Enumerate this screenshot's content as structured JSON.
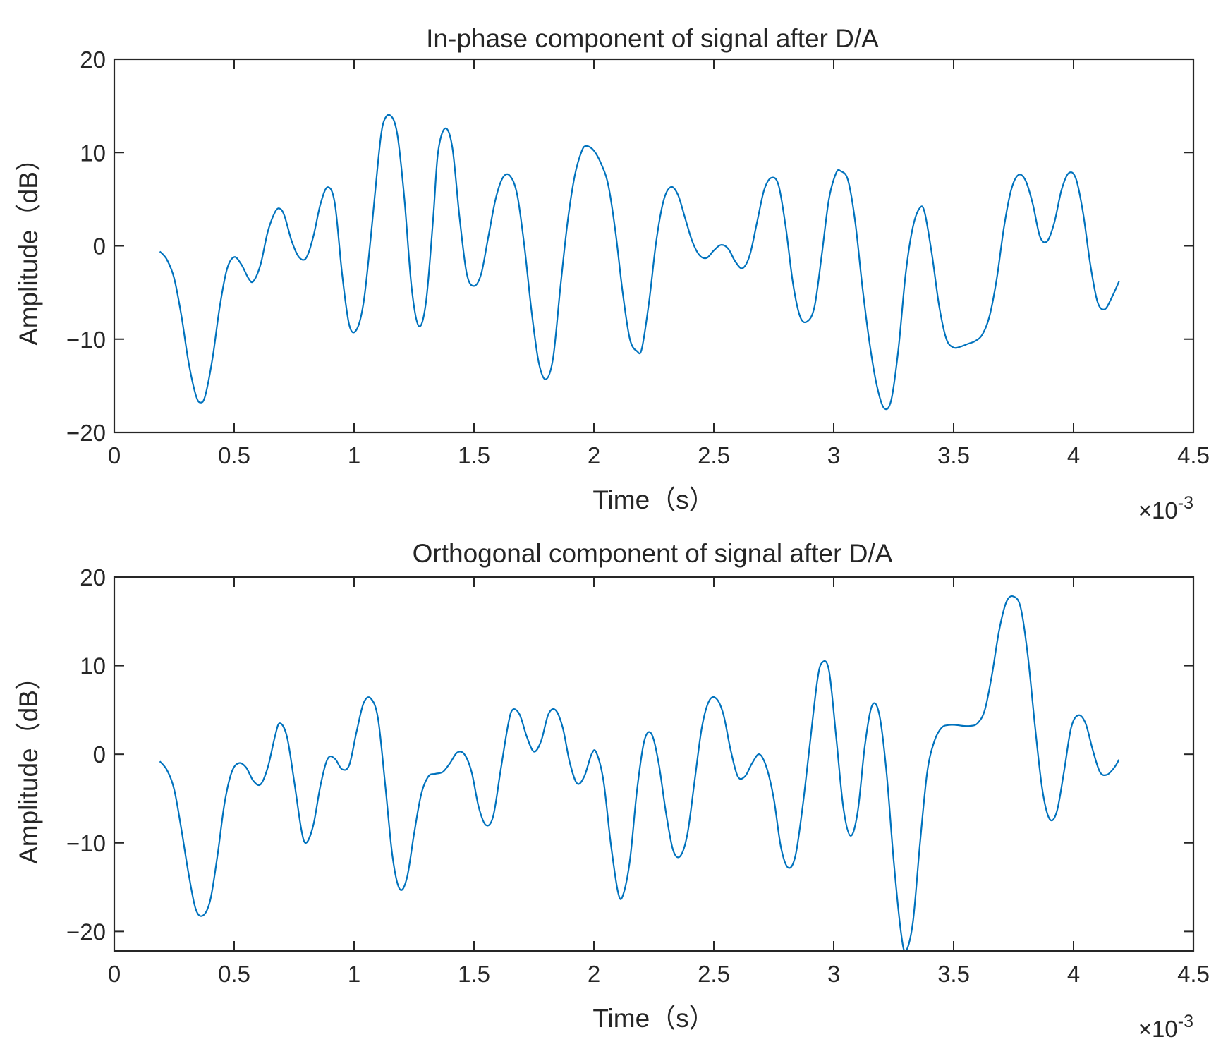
{
  "colors": {
    "series": "#0072BD",
    "axes": "#262626",
    "background": "#ffffff"
  },
  "chart_data": [
    {
      "type": "line",
      "title": "In-phase component of signal after D/A",
      "xlabel": "Time（s）",
      "ylabel": "Amplitude（dB）",
      "x_multiplier": "×10",
      "x_exponent": "-3",
      "xlim": [
        0,
        4.5
      ],
      "ylim": [
        -20,
        20
      ],
      "xticks": [
        0,
        0.5,
        1,
        1.5,
        2,
        2.5,
        3,
        3.5,
        4,
        4.5
      ],
      "xtick_labels": [
        "0",
        "0.5",
        "1",
        "1.5",
        "2",
        "2.5",
        "3",
        "3.5",
        "4",
        "4.5"
      ],
      "yticks": [
        -20,
        -10,
        0,
        10,
        20
      ],
      "ytick_labels": [
        "−20",
        "−10",
        "0",
        "10",
        "20"
      ],
      "series": [
        {
          "name": "In-phase",
          "x": [
            0.19,
            0.22,
            0.25,
            0.28,
            0.31,
            0.34,
            0.36,
            0.38,
            0.41,
            0.44,
            0.47,
            0.5,
            0.53,
            0.56,
            0.58,
            0.61,
            0.64,
            0.67,
            0.69,
            0.71,
            0.74,
            0.77,
            0.8,
            0.83,
            0.86,
            0.89,
            0.92,
            0.95,
            0.98,
            1.01,
            1.04,
            1.07,
            1.1,
            1.12,
            1.15,
            1.18,
            1.21,
            1.24,
            1.27,
            1.3,
            1.33,
            1.35,
            1.38,
            1.41,
            1.44,
            1.47,
            1.5,
            1.53,
            1.56,
            1.59,
            1.62,
            1.65,
            1.68,
            1.71,
            1.74,
            1.77,
            1.8,
            1.83,
            1.86,
            1.89,
            1.92,
            1.95,
            1.97,
            2.0,
            2.03,
            2.06,
            2.09,
            2.12,
            2.15,
            2.18,
            2.2,
            2.23,
            2.26,
            2.29,
            2.32,
            2.35,
            2.38,
            2.41,
            2.44,
            2.47,
            2.5,
            2.53,
            2.56,
            2.59,
            2.62,
            2.65,
            2.68,
            2.71,
            2.74,
            2.77,
            2.8,
            2.83,
            2.86,
            2.89,
            2.92,
            2.95,
            2.98,
            3.01,
            3.03,
            3.06,
            3.09,
            3.12,
            3.15,
            3.18,
            3.21,
            3.24,
            3.27,
            3.3,
            3.33,
            3.36,
            3.38,
            3.41,
            3.44,
            3.47,
            3.5,
            3.53,
            3.56,
            3.59,
            3.62,
            3.65,
            3.68,
            3.71,
            3.74,
            3.77,
            3.8,
            3.83,
            3.86,
            3.89,
            3.92,
            3.95,
            3.98,
            4.01,
            4.04,
            4.07,
            4.1,
            4.13,
            4.16,
            4.19
          ],
          "y": [
            -0.6,
            -1.5,
            -3.5,
            -7.5,
            -12.5,
            -16.0,
            -16.8,
            -16.0,
            -12.0,
            -6.5,
            -2.5,
            -1.2,
            -2.0,
            -3.5,
            -3.8,
            -2.0,
            1.5,
            3.6,
            4.0,
            3.2,
            0.5,
            -1.2,
            -1.3,
            1.0,
            4.5,
            6.3,
            4.5,
            -3.0,
            -8.5,
            -9.0,
            -6.0,
            1.0,
            9.0,
            13.0,
            14.0,
            12.0,
            5.0,
            -4.5,
            -8.6,
            -6.0,
            3.0,
            10.0,
            12.6,
            10.5,
            3.0,
            -3.0,
            -4.3,
            -3.0,
            1.0,
            5.0,
            7.3,
            7.5,
            5.5,
            0.0,
            -7.0,
            -12.5,
            -14.3,
            -12.0,
            -4.5,
            2.5,
            7.5,
            10.2,
            10.7,
            10.2,
            8.8,
            6.5,
            1.5,
            -5.0,
            -10.0,
            -11.3,
            -11.0,
            -6.0,
            0.5,
            4.8,
            6.3,
            5.5,
            3.0,
            0.5,
            -1.0,
            -1.3,
            -0.5,
            0.1,
            -0.3,
            -1.7,
            -2.4,
            -1.0,
            2.5,
            6.0,
            7.3,
            6.5,
            2.0,
            -4.0,
            -7.6,
            -8.1,
            -6.5,
            -1.0,
            5.0,
            7.8,
            8.0,
            7.0,
            2.5,
            -4.5,
            -10.5,
            -15.0,
            -17.4,
            -16.5,
            -11.0,
            -3.0,
            2.0,
            4.1,
            3.5,
            -1.0,
            -6.5,
            -10.0,
            -10.9,
            -10.8,
            -10.5,
            -10.2,
            -9.5,
            -7.5,
            -3.5,
            2.0,
            6.0,
            7.6,
            7.0,
            4.5,
            1.0,
            0.5,
            2.5,
            6.0,
            7.8,
            7.2,
            3.5,
            -2.0,
            -6.0,
            -6.8,
            -5.5,
            -3.8
          ]
        }
      ]
    },
    {
      "type": "line",
      "title": "Orthogonal component of signal after D/A",
      "xlabel": "Time（s）",
      "ylabel": "Amplitude（dB）",
      "x_multiplier": "×10",
      "x_exponent": "-3",
      "xlim": [
        0,
        4.5
      ],
      "ylim": [
        -22.2,
        20
      ],
      "xticks": [
        0,
        0.5,
        1,
        1.5,
        2,
        2.5,
        3,
        3.5,
        4,
        4.5
      ],
      "xtick_labels": [
        "0",
        "0.5",
        "1",
        "1.5",
        "2",
        "2.5",
        "3",
        "3.5",
        "4",
        "4.5"
      ],
      "yticks": [
        -20,
        -10,
        0,
        10,
        20
      ],
      "ytick_labels": [
        "−20",
        "−10",
        "0",
        "10",
        "20"
      ],
      "series": [
        {
          "name": "Orthogonal",
          "x": [
            0.19,
            0.22,
            0.25,
            0.28,
            0.31,
            0.34,
            0.37,
            0.4,
            0.43,
            0.46,
            0.49,
            0.52,
            0.55,
            0.58,
            0.61,
            0.64,
            0.67,
            0.69,
            0.72,
            0.75,
            0.78,
            0.8,
            0.83,
            0.86,
            0.89,
            0.92,
            0.95,
            0.98,
            1.01,
            1.04,
            1.07,
            1.1,
            1.13,
            1.16,
            1.19,
            1.22,
            1.25,
            1.28,
            1.31,
            1.34,
            1.37,
            1.4,
            1.43,
            1.46,
            1.49,
            1.52,
            1.55,
            1.58,
            1.61,
            1.64,
            1.66,
            1.69,
            1.72,
            1.75,
            1.78,
            1.81,
            1.84,
            1.87,
            1.9,
            1.93,
            1.96,
            1.99,
            2.01,
            2.04,
            2.07,
            2.1,
            2.12,
            2.15,
            2.18,
            2.21,
            2.24,
            2.27,
            2.3,
            2.33,
            2.36,
            2.39,
            2.42,
            2.45,
            2.48,
            2.51,
            2.54,
            2.57,
            2.6,
            2.63,
            2.66,
            2.69,
            2.72,
            2.75,
            2.78,
            2.81,
            2.84,
            2.87,
            2.9,
            2.93,
            2.95,
            2.98,
            3.01,
            3.04,
            3.07,
            3.1,
            3.13,
            3.16,
            3.19,
            3.22,
            3.25,
            3.28,
            3.3,
            3.33,
            3.36,
            3.39,
            3.42,
            3.45,
            3.48,
            3.51,
            3.54,
            3.57,
            3.6,
            3.63,
            3.66,
            3.69,
            3.72,
            3.75,
            3.78,
            3.81,
            3.84,
            3.87,
            3.9,
            3.93,
            3.96,
            3.99,
            4.02,
            4.05,
            4.08,
            4.11,
            4.14,
            4.17,
            4.19
          ],
          "y": [
            -0.8,
            -1.8,
            -4.0,
            -8.5,
            -13.5,
            -17.5,
            -18.2,
            -16.5,
            -11.5,
            -5.5,
            -2.0,
            -1.0,
            -1.5,
            -3.0,
            -3.4,
            -1.5,
            2.0,
            3.5,
            2.0,
            -3.0,
            -8.5,
            -10.0,
            -8.0,
            -3.5,
            -0.5,
            -0.5,
            -1.7,
            -1.2,
            2.5,
            5.8,
            6.3,
            4.0,
            -3.5,
            -11.5,
            -15.2,
            -14.0,
            -9.0,
            -4.5,
            -2.5,
            -2.2,
            -2.0,
            -1.0,
            0.2,
            0.0,
            -2.0,
            -6.0,
            -8.0,
            -7.0,
            -2.0,
            3.0,
            5.0,
            4.5,
            2.0,
            0.3,
            1.5,
            4.5,
            5.0,
            3.0,
            -1.0,
            -3.3,
            -2.5,
            0.0,
            0.2,
            -3.0,
            -10.0,
            -15.5,
            -16.0,
            -12.0,
            -4.0,
            1.5,
            2.3,
            -1.0,
            -6.5,
            -10.8,
            -11.5,
            -9.0,
            -3.0,
            3.0,
            6.0,
            6.3,
            4.5,
            0.5,
            -2.5,
            -2.5,
            -1.0,
            0.0,
            -1.5,
            -5.0,
            -10.5,
            -12.8,
            -11.5,
            -6.0,
            1.0,
            8.0,
            10.3,
            9.5,
            2.0,
            -6.0,
            -9.2,
            -6.5,
            1.0,
            5.5,
            4.5,
            -2.0,
            -12.0,
            -20.0,
            -22.2,
            -19.0,
            -10.0,
            -2.0,
            1.5,
            3.0,
            3.3,
            3.3,
            3.2,
            3.2,
            3.5,
            5.0,
            9.0,
            14.0,
            17.2,
            17.8,
            16.5,
            11.0,
            3.0,
            -4.0,
            -7.3,
            -6.5,
            -2.0,
            3.0,
            4.4,
            3.5,
            0.5,
            -2.0,
            -2.3,
            -1.5,
            -0.6
          ]
        }
      ]
    }
  ]
}
